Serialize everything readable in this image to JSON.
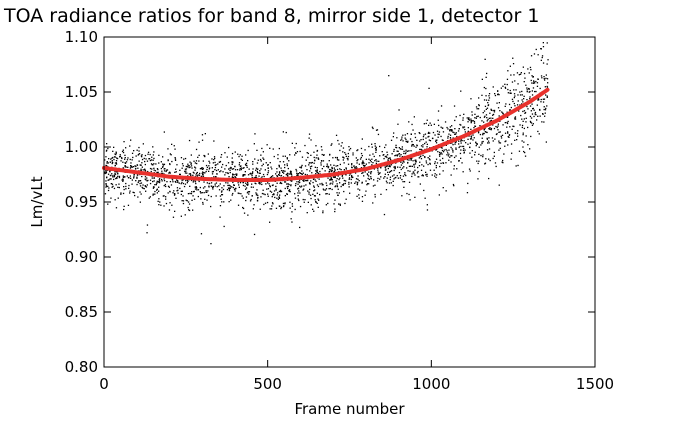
{
  "chart_data": {
    "type": "scatter",
    "title": "TOA radiance ratios for band 8, mirror side 1, detector 1",
    "xlabel": "Frame number",
    "ylabel": "Lm/vLt",
    "xlim": [
      0,
      1500
    ],
    "ylim": [
      0.8,
      1.1
    ],
    "xticks": [
      0,
      500,
      1000,
      1500
    ],
    "xtick_labels": [
      "0",
      "500",
      "1000",
      "1500"
    ],
    "yticks": [
      0.8,
      0.85,
      0.9,
      0.95,
      1.0,
      1.05,
      1.1
    ],
    "ytick_labels": [
      "0.80",
      "0.85",
      "0.90",
      "0.95",
      "1.00",
      "1.05",
      "1.10"
    ],
    "grid": false,
    "colors": {
      "points": "#000000",
      "fit": "#e8312c"
    },
    "series": [
      {
        "type": "scatter",
        "x_range": [
          0,
          1355
        ],
        "trend_x": [
          0,
          100,
          200,
          300,
          400,
          500,
          600,
          700,
          800,
          900,
          1000,
          1100,
          1200,
          1300,
          1355
        ],
        "trend_y": [
          0.98,
          0.976,
          0.972,
          0.971,
          0.97,
          0.97,
          0.972,
          0.975,
          0.98,
          0.988,
          0.998,
          1.01,
          1.024,
          1.041,
          1.052
        ],
        "spread": [
          0.012,
          0.012,
          0.013,
          0.013,
          0.013,
          0.013,
          0.013,
          0.013,
          0.013,
          0.014,
          0.015,
          0.017,
          0.019,
          0.021,
          0.022
        ]
      },
      {
        "type": "line",
        "x": [
          0,
          100,
          200,
          300,
          400,
          500,
          600,
          700,
          800,
          900,
          1000,
          1100,
          1200,
          1300,
          1355
        ],
        "y": [
          0.981,
          0.977,
          0.973,
          0.971,
          0.97,
          0.97,
          0.972,
          0.975,
          0.98,
          0.988,
          0.998,
          1.01,
          1.024,
          1.041,
          1.052
        ]
      }
    ]
  }
}
